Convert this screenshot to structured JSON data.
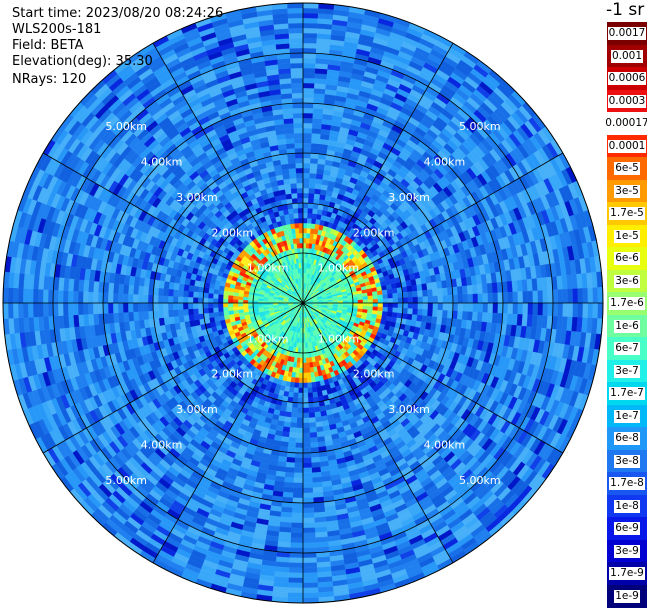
{
  "header": {
    "start_time": "Start time: 2023/08/20 08:24:26",
    "instrument": "WLS200s-181",
    "field": "Field: BETA",
    "elevation": "Elevation(deg): 35.30",
    "nrays": "NRays: 120"
  },
  "colorbar": {
    "unit": "-1 sr",
    "labels": [
      "0.0017",
      "0.001",
      "0.0006",
      "0.0003",
      "0.00017",
      "0.0001",
      "6e-5",
      "3e-5",
      "1.7e-5",
      "1e-5",
      "6e-6",
      "3e-6",
      "1.7e-6",
      "1e-6",
      "6e-7",
      "3e-7",
      "1.7e-7",
      "1e-7",
      "6e-8",
      "3e-8",
      "1.7e-8",
      "1e-8",
      "6e-9",
      "3e-9",
      "1.7e-9",
      "1e-9"
    ],
    "colors": [
      "#7a0000",
      "#a00000",
      "#cc0000",
      "#ee1010",
      "#ffffff",
      "#ff2a00",
      "#ff6a00",
      "#ff9a00",
      "#ffc800",
      "#ffee00",
      "#e8ff10",
      "#c0ff40",
      "#98ff70",
      "#70ffa0",
      "#48ffc8",
      "#20f0e8",
      "#00d8f0",
      "#00b8f8",
      "#2098f8",
      "#2078f0",
      "#1858f0",
      "#1038f0",
      "#0818e8",
      "#0000d0",
      "#0000a8",
      "#00007a"
    ]
  },
  "chart_data": {
    "type": "heatmap",
    "projection": "polar",
    "range_rings": [
      {
        "range_km": 1,
        "label": "1.00km"
      },
      {
        "range_km": 2,
        "label": "2.00km"
      },
      {
        "range_km": 3,
        "label": "3.00km"
      },
      {
        "range_km": 4,
        "label": "4.00km"
      },
      {
        "range_km": 5,
        "label": "5.00km"
      }
    ],
    "max_range_km": 6.0,
    "azimuth_spokes_deg": [
      0,
      30,
      60,
      90,
      120,
      150,
      180,
      210,
      240,
      270,
      300,
      330
    ],
    "nrays": 120,
    "background_level": "1e-7",
    "aerosol_ring_km": [
      1.1,
      1.6
    ],
    "aerosol_ring_level": "1e-5",
    "near_field_level": "6e-7"
  }
}
